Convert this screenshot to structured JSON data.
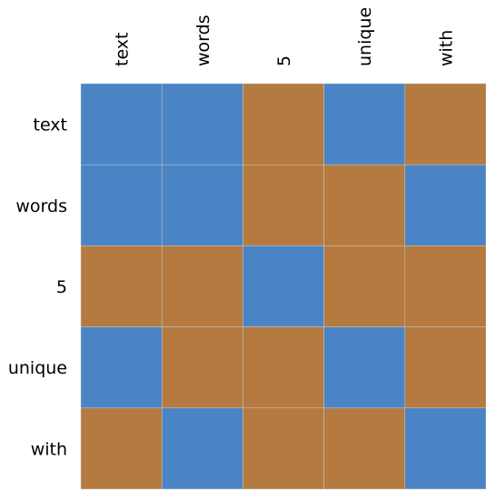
{
  "chart_data": {
    "type": "heatmap",
    "title": "",
    "xlabel": "",
    "ylabel": "",
    "x_categories": [
      "text",
      "words",
      "5",
      "unique",
      "with"
    ],
    "y_categories": [
      "text",
      "words",
      "5",
      "unique",
      "with"
    ],
    "values": [
      [
        1,
        1,
        0,
        1,
        0
      ],
      [
        1,
        1,
        0,
        0,
        1
      ],
      [
        0,
        0,
        1,
        0,
        0
      ],
      [
        1,
        0,
        0,
        1,
        0
      ],
      [
        0,
        1,
        0,
        0,
        1
      ]
    ],
    "colors": {
      "1": "#4a84c4",
      "0": "#b47a40"
    },
    "cell_border_color": "#cccccc",
    "grid": false,
    "legend": "none"
  }
}
